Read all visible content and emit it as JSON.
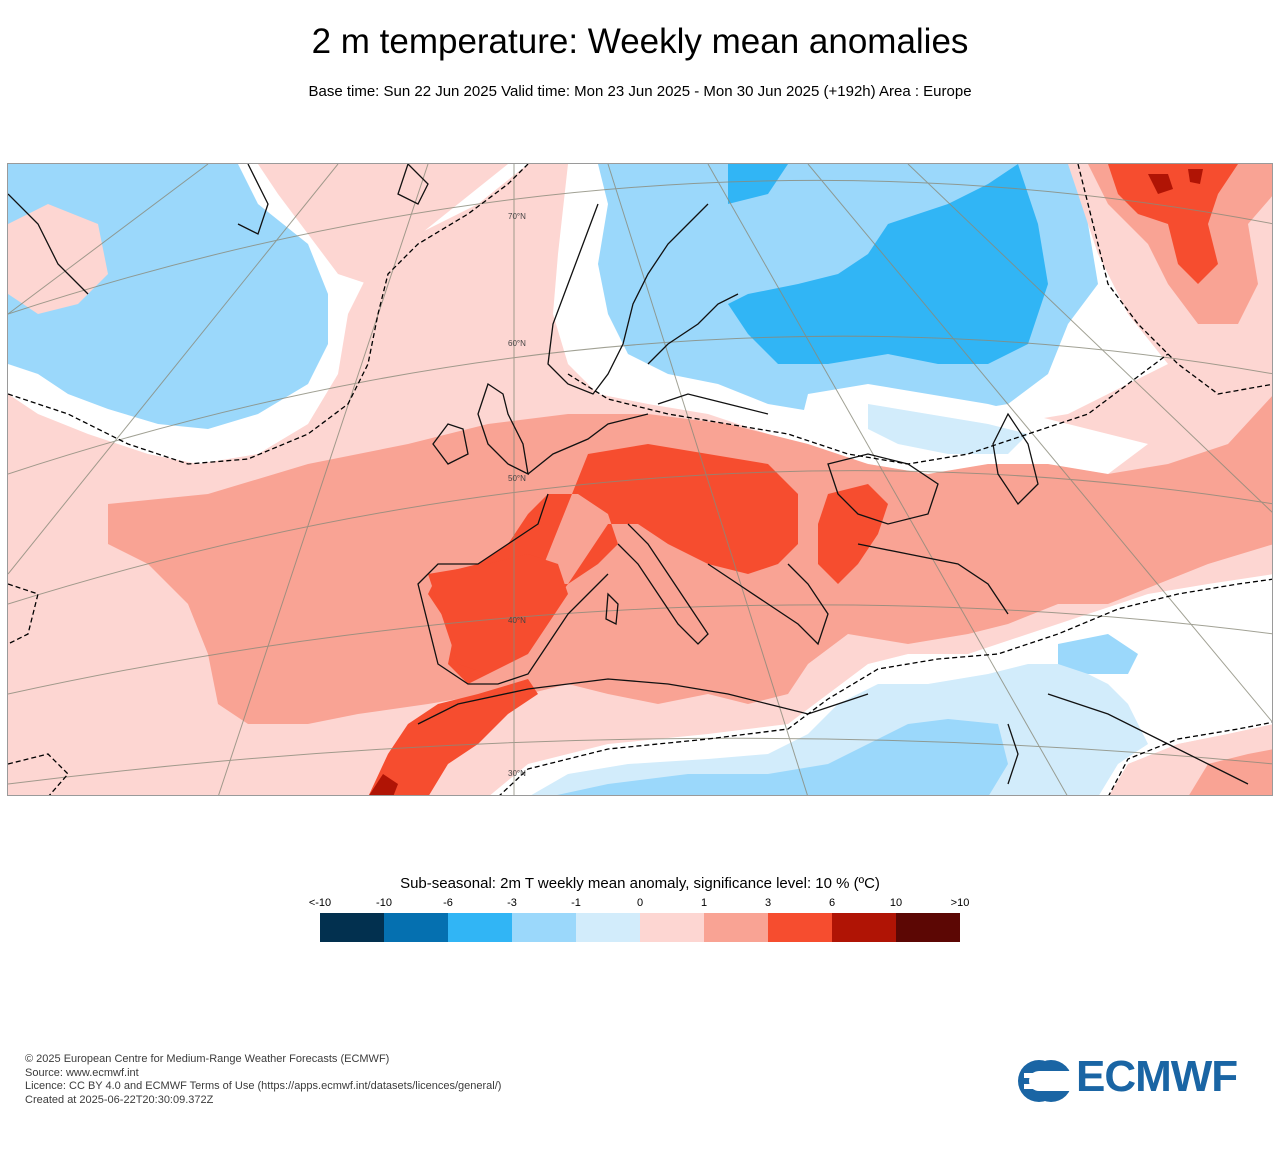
{
  "header": {
    "title": "2 m temperature: Weekly mean anomalies",
    "subtitle": "Base time: Sun 22 Jun 2025 Valid time: Mon 23 Jun 2025 - Mon 30 Jun 2025 (+192h) Area : Europe"
  },
  "map": {
    "latitude_labels": [
      "70°N",
      "60°N",
      "50°N",
      "40°N",
      "30°N"
    ],
    "anomaly_regions": {
      "atlantic_north": "-3 to -1",
      "scandinavia_russia": "-6 to -3",
      "western_central_europe": "3 to 6",
      "iberia": "3 to 6",
      "north_africa_atlantic_coast": "3 to 6",
      "mid_atlantic": "1 to 3",
      "eastern_mediterranean_sea": "-3 to -1",
      "north_siberia": "3 to 6"
    },
    "colors": {
      "land_outline": "#000000",
      "graticule": "#8a8a7a",
      "significance_contour": "#000000"
    }
  },
  "legend": {
    "title": "Sub-seasonal: 2m T weekly mean anomaly, significance level: 10 % (ºC)",
    "labels": [
      "<-10",
      "-10",
      "-6",
      "-3",
      "-1",
      "0",
      "1",
      "3",
      "6",
      "10",
      ">10"
    ],
    "colors": [
      "#02304f",
      "#0570b0",
      "#31b5f5",
      "#9bd8fb",
      "#d2ecfb",
      "#fdd6d2",
      "#f9a394",
      "#f64d2f",
      "#b01405",
      "#5c0704"
    ]
  },
  "footer": {
    "line1": "© 2025 European Centre for Medium-Range Weather Forecasts (ECMWF)",
    "line2": "Source: www.ecmwf.int",
    "line3": "Licence: CC BY 4.0 and ECMWF Terms of Use (https://apps.ecmwf.int/datasets/licences/general/)",
    "line4": "Created at 2025-06-22T20:30:09.372Z"
  },
  "logo": {
    "text": "ECMWF",
    "color": "#1a65a4"
  }
}
